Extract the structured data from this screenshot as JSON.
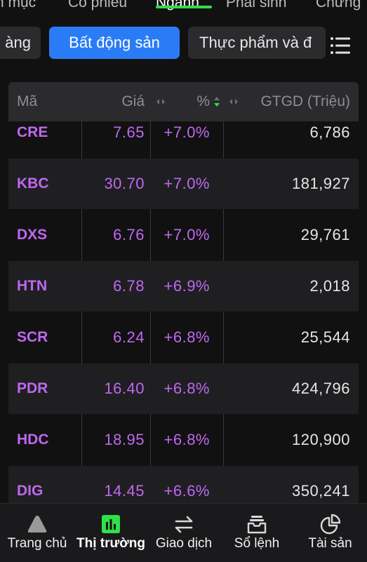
{
  "top_tabs": [
    {
      "label": "n mục",
      "active": false
    },
    {
      "label": "Cổ phiếu",
      "active": false
    },
    {
      "label": "Ngành",
      "active": true
    },
    {
      "label": "Phái sinh",
      "active": false
    },
    {
      "label": "Chứng",
      "active": false
    }
  ],
  "chips": [
    {
      "label": "àng",
      "active": false
    },
    {
      "label": "Bất động sản",
      "active": true
    },
    {
      "label": "Thực phẩm và đ",
      "active": false
    }
  ],
  "icons": {
    "list": "list-icon",
    "home": "triangle-icon",
    "market": "bar-chart-icon",
    "trade": "arrows-icon",
    "orders": "tray-icon",
    "assets": "pie-chart-icon"
  },
  "colors": {
    "accent": "#2a7cf6",
    "active_tab_underline": "#2ee04a",
    "ceiling_purple": "#c067f1",
    "market_icon_green": "#2ee04a"
  },
  "table": {
    "headers": {
      "code": "Mã",
      "price": "Giá",
      "pct": "%",
      "value": "GTGD (Triệu)"
    },
    "rows": [
      {
        "code": "CRE",
        "price": "7.65",
        "pct": "+7.0%",
        "value": "6,786"
      },
      {
        "code": "KBC",
        "price": "30.70",
        "pct": "+7.0%",
        "value": "181,927"
      },
      {
        "code": "DXS",
        "price": "6.76",
        "pct": "+7.0%",
        "value": "29,761"
      },
      {
        "code": "HTN",
        "price": "6.78",
        "pct": "+6.9%",
        "value": "2,018"
      },
      {
        "code": "SCR",
        "price": "6.24",
        "pct": "+6.8%",
        "value": "25,544"
      },
      {
        "code": "PDR",
        "price": "16.40",
        "pct": "+6.8%",
        "value": "424,796"
      },
      {
        "code": "HDC",
        "price": "18.95",
        "pct": "+6.8%",
        "value": "120,900"
      },
      {
        "code": "DIG",
        "price": "14.45",
        "pct": "+6.6%",
        "value": "350,241"
      }
    ]
  },
  "bottom_nav": [
    {
      "label": "Trang chủ",
      "active": false
    },
    {
      "label": "Thị trường",
      "active": true
    },
    {
      "label": "Giao dịch",
      "active": false
    },
    {
      "label": "Sổ lệnh",
      "active": false
    },
    {
      "label": "Tài sản",
      "active": false
    }
  ]
}
